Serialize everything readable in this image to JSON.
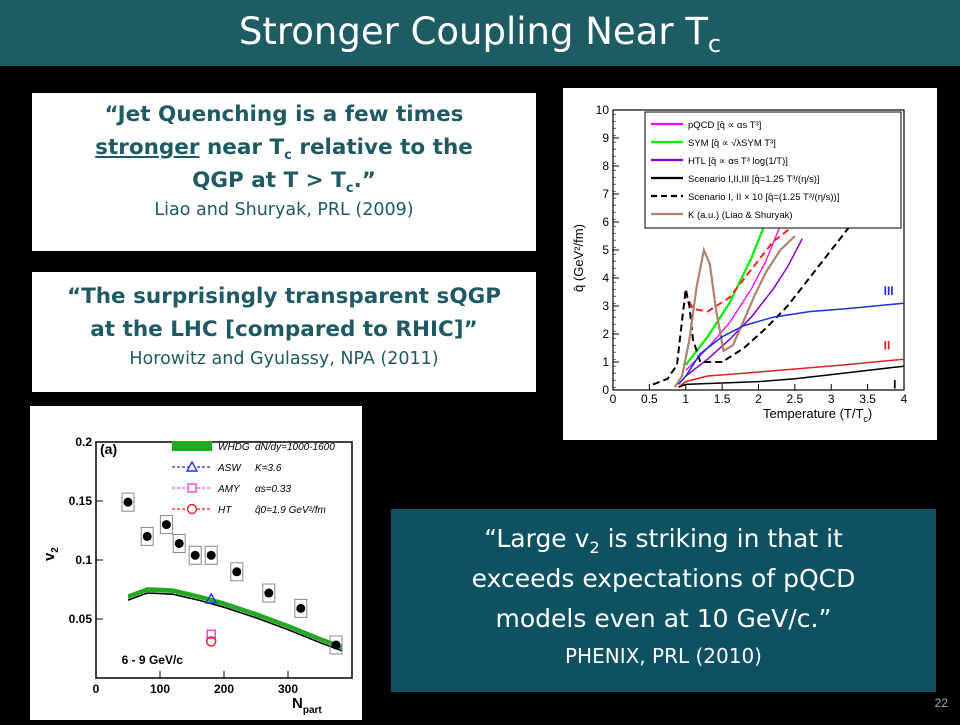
{
  "slide": {
    "title": "Stronger Coupling Near T",
    "title_sub": "c",
    "page_number": "22"
  },
  "quotes": {
    "q1": {
      "line1": "“Jet Quenching is a few times",
      "line2_underlined": "stronger",
      "line2_rest": " near T",
      "line2_sub": "c",
      "line2_tail": " relative to the",
      "line3": "QGP at T > T",
      "line3_sub": "c",
      "line3_tail": ".”",
      "citation": "Liao and Shuryak, PRL (2009)"
    },
    "q2": {
      "line1": "“The surprisingly transparent sQGP",
      "line2": "at the LHC [compared to RHIC]”",
      "citation": "Horowitz and Gyulassy, NPA (2011)"
    },
    "phenix": {
      "line1_a": "“Large v",
      "line1_sub": "2",
      "line1_b": " is striking in that it",
      "line2": "exceeds expectations of pQCD",
      "line3": "models even at 10 GeV/c.”",
      "citation": "PHENIX, PRL (2010)"
    }
  },
  "chart_data": [
    {
      "id": "qhat",
      "type": "line",
      "xlabel": "Temperature (T/T",
      "xlabel_sub": "c",
      "xlabel_end": ")",
      "ylabel": "q̂ (GeV²/fm)",
      "xlim": [
        0,
        4
      ],
      "ylim": [
        0,
        10
      ],
      "x_ticks": [
        "0",
        "0.5",
        "1",
        "1.5",
        "2",
        "2.5",
        "3",
        "3.5",
        "4"
      ],
      "y_ticks": [
        "0",
        "1",
        "2",
        "3",
        "4",
        "5",
        "6",
        "7",
        "8",
        "9",
        "10"
      ],
      "legend": [
        {
          "label": "pQCD [q̂ ∝ αs T³]",
          "color": "#ff00ff",
          "dash": ""
        },
        {
          "label": "SYM [q̂ ∝ √λSYM T³]",
          "color": "#00ee00",
          "dash": ""
        },
        {
          "label": "HTL [q̂ ∝ αs T³ log(1/T)]",
          "color": "#8800cc",
          "dash": ""
        },
        {
          "label": "Scenario I,II,III [q̂=1.25 T³/(η/s)]",
          "color": "#000000",
          "dash": ""
        },
        {
          "label": "Scenario I, II × 10 [q̂=(1.25 T³/(η/s))]",
          "color": "#000000",
          "dash": "6,4"
        },
        {
          "label": "K (a.u.) (Liao & Shuryak)",
          "color": "#b08070",
          "dash": ""
        }
      ],
      "legend_placement": "top-right",
      "annotations": [
        "III",
        "II",
        "I"
      ],
      "series": [
        {
          "color": "#ff00ff",
          "width": 1.3,
          "dash": "",
          "points": [
            [
              1.0,
              0.7
            ],
            [
              1.3,
              1.5
            ],
            [
              1.6,
              2.4
            ],
            [
              1.9,
              3.6
            ],
            [
              2.1,
              4.6
            ],
            [
              2.35,
              6.2
            ],
            [
              2.5,
              7.2
            ]
          ]
        },
        {
          "color": "#00ee00",
          "width": 2.2,
          "dash": "",
          "points": [
            [
              1.0,
              0.9
            ],
            [
              1.3,
              1.9
            ],
            [
              1.6,
              3.1
            ],
            [
              1.9,
              4.7
            ],
            [
              2.1,
              6.0
            ],
            [
              2.3,
              7.2
            ],
            [
              2.42,
              8.2
            ]
          ]
        },
        {
          "color": "#8800cc",
          "width": 1.5,
          "dash": "",
          "points": [
            [
              1.0,
              0.5
            ],
            [
              1.3,
              1.1
            ],
            [
              1.6,
              1.8
            ],
            [
              1.9,
              2.6
            ],
            [
              2.2,
              3.6
            ],
            [
              2.4,
              4.4
            ],
            [
              2.6,
              5.4
            ]
          ]
        },
        {
          "color": "#ff2020",
          "width": 2.0,
          "dash": "7,4",
          "points": [
            [
              0.98,
              3.5
            ],
            [
              1.1,
              2.9
            ],
            [
              1.3,
              2.8
            ],
            [
              1.6,
              3.3
            ],
            [
              1.9,
              4.3
            ],
            [
              2.2,
              5.3
            ],
            [
              2.5,
              5.9
            ],
            [
              2.7,
              6.2
            ]
          ]
        },
        {
          "color": "#000000",
          "width": 2.0,
          "dash": "7,4",
          "points": [
            [
              0.55,
              0.2
            ],
            [
              0.75,
              0.4
            ],
            [
              0.88,
              0.9
            ],
            [
              0.95,
              2.5
            ],
            [
              1.0,
              3.6
            ],
            [
              1.05,
              3.0
            ],
            [
              1.1,
              1.8
            ],
            [
              1.2,
              1.0
            ],
            [
              1.5,
              1.0
            ],
            [
              1.8,
              1.5
            ],
            [
              2.1,
              2.2
            ],
            [
              2.4,
              3.0
            ],
            [
              2.7,
              4.0
            ],
            [
              3.0,
              5.0
            ],
            [
              3.3,
              6.0
            ],
            [
              3.6,
              7.1
            ],
            [
              3.85,
              8.2
            ]
          ]
        },
        {
          "color": "#b08070",
          "width": 2.2,
          "dash": "",
          "points": [
            [
              0.85,
              0.1
            ],
            [
              0.95,
              0.5
            ],
            [
              1.05,
              1.8
            ],
            [
              1.15,
              3.7
            ],
            [
              1.25,
              5.0
            ],
            [
              1.33,
              4.5
            ],
            [
              1.42,
              2.8
            ],
            [
              1.52,
              1.4
            ],
            [
              1.65,
              1.6
            ],
            [
              1.8,
              2.5
            ],
            [
              1.95,
              3.4
            ],
            [
              2.1,
              4.2
            ],
            [
              2.3,
              5.0
            ],
            [
              2.5,
              5.5
            ]
          ]
        },
        {
          "color": "#1a2ee0",
          "width": 1.5,
          "dash": "",
          "points": [
            [
              0.9,
              0.2
            ],
            [
              1.0,
              0.5
            ],
            [
              1.2,
              1.3
            ],
            [
              1.5,
              1.9
            ],
            [
              1.8,
              2.3
            ],
            [
              2.2,
              2.6
            ],
            [
              2.7,
              2.8
            ],
            [
              3.2,
              2.9
            ],
            [
              3.6,
              3.0
            ],
            [
              4.0,
              3.1
            ]
          ]
        },
        {
          "color": "#e02020",
          "width": 1.5,
          "dash": "",
          "points": [
            [
              0.9,
              0.1
            ],
            [
              1.0,
              0.3
            ],
            [
              1.3,
              0.5
            ],
            [
              1.8,
              0.6
            ],
            [
              2.5,
              0.75
            ],
            [
              3.2,
              0.9
            ],
            [
              4.0,
              1.1
            ]
          ]
        },
        {
          "color": "#000000",
          "width": 1.5,
          "dash": "",
          "points": [
            [
              0.9,
              0.1
            ],
            [
              1.0,
              0.2
            ],
            [
              1.5,
              0.25
            ],
            [
              2.0,
              0.3
            ],
            [
              2.5,
              0.4
            ],
            [
              3.0,
              0.55
            ],
            [
              3.5,
              0.7
            ],
            [
              4.0,
              0.85
            ]
          ]
        }
      ]
    },
    {
      "id": "v2",
      "type": "scatter",
      "xlabel": "N",
      "xlabel_sub": "part",
      "ylabel": "v",
      "ylabel_sub": "2",
      "xlim": [
        0,
        400
      ],
      "ylim": [
        0,
        0.2
      ],
      "x_ticks": [
        "0",
        "100",
        "200",
        "300"
      ],
      "y_ticks": [
        "0.05",
        "0.1",
        "0.15",
        "0.2"
      ],
      "panel_label": "(a)",
      "kin_label": "6 - 9 GeV/c",
      "legend": [
        {
          "label": "WHDG",
          "extra": "dN/dy=1000-1600",
          "marker": "band",
          "color": "#22aa22"
        },
        {
          "label": "ASW",
          "extra": "K=3.6",
          "marker": "triangle",
          "color": "#2233dd"
        },
        {
          "label": "AMY",
          "extra": "αs=0.33",
          "marker": "square",
          "color": "#ee44dd"
        },
        {
          "label": "HT",
          "extra": "q̂0=1.9 GeV²/fm",
          "marker": "circle",
          "color": "#ee2222"
        }
      ],
      "data_points": {
        "x": [
          50,
          80,
          110,
          130,
          155,
          180,
          220,
          270,
          320,
          375
        ],
        "y": [
          0.149,
          0.12,
          0.13,
          0.114,
          0.104,
          0.104,
          0.09,
          0.072,
          0.059,
          0.028
        ]
      },
      "whdg_band": {
        "x": [
          50,
          80,
          120,
          160,
          200,
          250,
          300,
          350,
          385
        ],
        "y_low": [
          0.067,
          0.073,
          0.072,
          0.067,
          0.061,
          0.052,
          0.042,
          0.031,
          0.024
        ],
        "y_high": [
          0.071,
          0.077,
          0.076,
          0.071,
          0.065,
          0.056,
          0.046,
          0.035,
          0.028
        ]
      },
      "black_curve": {
        "x": [
          50,
          80,
          120,
          160,
          200,
          250,
          300,
          350,
          385
        ],
        "y": [
          0.066,
          0.072,
          0.071,
          0.066,
          0.06,
          0.051,
          0.041,
          0.03,
          0.023
        ]
      },
      "model_points": [
        {
          "model": "ASW",
          "x": 180,
          "y": 0.067
        },
        {
          "model": "AMY",
          "x": 180,
          "y": 0.037
        },
        {
          "model": "HT",
          "x": 180,
          "y": 0.031
        }
      ]
    }
  ]
}
